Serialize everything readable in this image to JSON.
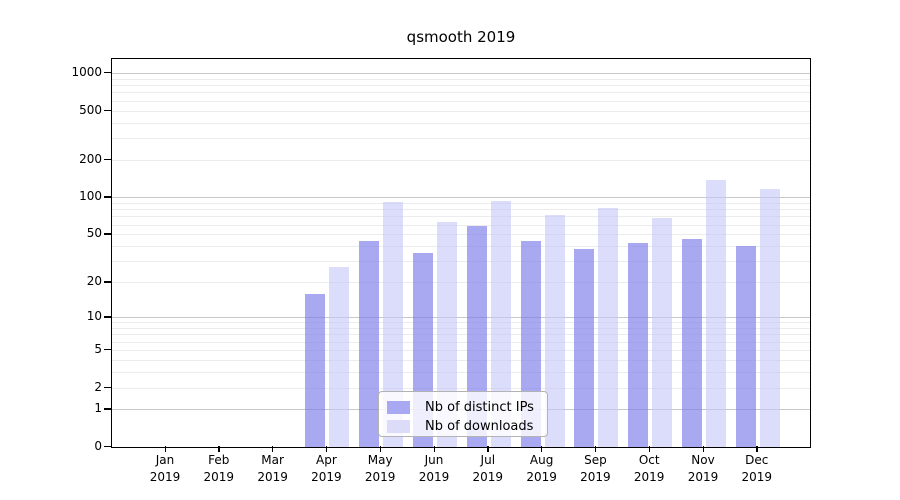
{
  "chart_data": {
    "type": "bar",
    "title": "qsmooth 2019",
    "categories": [
      "Jan",
      "Feb",
      "Mar",
      "Apr",
      "May",
      "Jun",
      "Jul",
      "Aug",
      "Sep",
      "Oct",
      "Nov",
      "Dec"
    ],
    "year": "2019",
    "series": [
      {
        "name": "Nb of distinct IPs",
        "color": "#a9a9f3",
        "values": [
          0,
          0,
          0,
          16,
          44,
          35,
          58,
          44,
          38,
          42,
          46,
          40
        ]
      },
      {
        "name": "Nb of downloads",
        "color": "#dcdcf8",
        "values": [
          0,
          0,
          0,
          27,
          92,
          63,
          93,
          72,
          82,
          68,
          138,
          116
        ]
      }
    ],
    "xlabel": "",
    "ylabel": "",
    "yscale": "log10(value+1)",
    "yticks": [
      1000,
      500,
      200,
      100,
      50,
      20,
      10,
      5,
      2,
      1,
      0
    ],
    "ylim": [
      0,
      1300
    ],
    "grid": true,
    "grid_major_at": [
      1,
      10,
      100,
      1000
    ],
    "legend_position": "inside-bottom-center",
    "colors": {
      "grid_major": "#c8c8c8",
      "grid_minor": "#ececec",
      "axis": "#000000",
      "background": "#ffffff"
    }
  }
}
